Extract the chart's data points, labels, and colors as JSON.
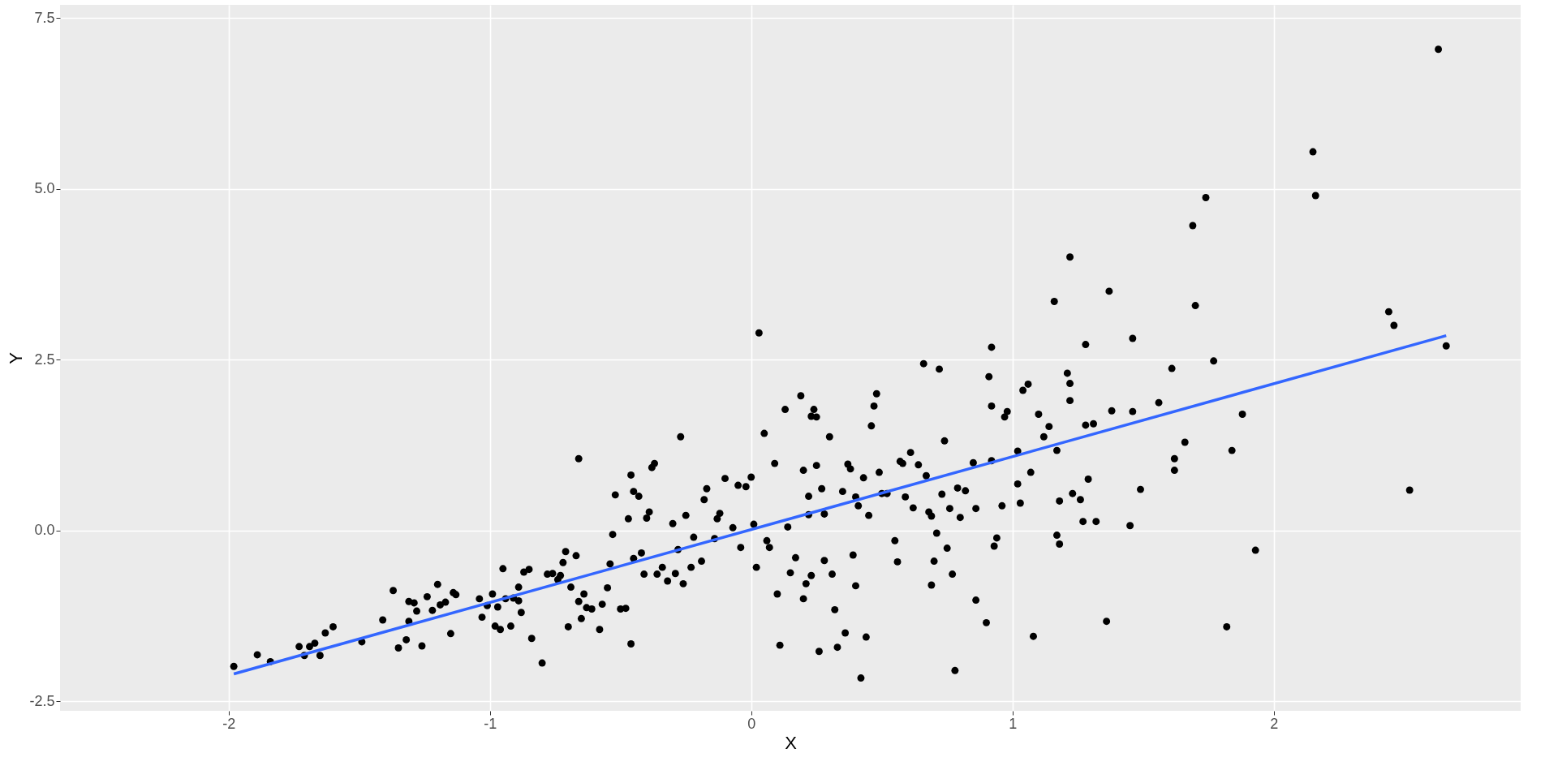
{
  "chart_data": {
    "type": "scatter",
    "xlabel": "X",
    "ylabel": "Y",
    "xlim": [
      -2.645,
      2.945
    ],
    "ylim": [
      -2.64,
      7.69
    ],
    "xticks": [
      -2,
      -1,
      0,
      1,
      2
    ],
    "yticks": [
      {
        "value": -2.5,
        "label": "-2.5"
      },
      {
        "value": 0,
        "label": "0.0"
      },
      2.5,
      {
        "value": 5,
        "label": "5.0"
      },
      7.5
    ],
    "grid": true,
    "series": [
      {
        "color": "#000000",
        "marker": "circle",
        "x": [
          -1.98,
          -1.89,
          -1.84,
          -1.73,
          -1.71,
          -1.69,
          -1.67,
          -1.65,
          -1.63,
          -1.6,
          -1.49,
          -1.41,
          -1.37,
          -1.35,
          -1.32,
          -1.31,
          -1.31,
          -1.29,
          -1.28,
          -1.26,
          -1.24,
          -1.22,
          -1.2,
          -1.19,
          -1.17,
          -1.15,
          -1.14,
          -1.13,
          -1.04,
          -1.03,
          -1.01,
          -0.99,
          -0.98,
          -0.97,
          -0.96,
          -0.95,
          -0.94,
          -0.92,
          -0.91,
          -0.89,
          -0.89,
          -0.88,
          -0.87,
          -0.85,
          -0.84,
          -0.8,
          -0.78,
          -0.76,
          -0.74,
          -0.73,
          -0.72,
          -0.71,
          -0.7,
          -0.69,
          -0.67,
          -0.66,
          -0.65,
          -0.66,
          -0.64,
          -0.63,
          -0.61,
          -0.58,
          -0.57,
          -0.55,
          -0.54,
          -0.53,
          -0.52,
          -0.5,
          -0.48,
          -0.47,
          -0.46,
          -0.45,
          -0.46,
          -0.45,
          -0.43,
          -0.42,
          -0.41,
          -0.4,
          -0.39,
          -0.38,
          -0.37,
          -0.36,
          -0.34,
          -0.32,
          -0.3,
          -0.29,
          -0.28,
          -0.27,
          -0.26,
          -0.25,
          -0.23,
          -0.22,
          -0.19,
          -0.18,
          -0.17,
          -0.14,
          -0.13,
          -0.12,
          -0.1,
          -0.07,
          -0.05,
          -0.04,
          -0.02,
          0,
          0.01,
          0.02,
          0.03,
          0.05,
          0.06,
          0.07,
          0.09,
          0.1,
          0.11,
          0.13,
          0.14,
          0.15,
          0.17,
          0.19,
          0.2,
          0.2,
          0.21,
          0.22,
          0.22,
          0.23,
          0.23,
          0.24,
          0.25,
          0.25,
          0.26,
          0.27,
          0.28,
          0.28,
          0.3,
          0.31,
          0.32,
          0.33,
          0.35,
          0.36,
          0.37,
          0.38,
          0.39,
          0.4,
          0.4,
          0.41,
          0.42,
          0.43,
          0.44,
          0.45,
          0.46,
          0.47,
          0.48,
          0.49,
          0.5,
          0.52,
          0.55,
          0.56,
          0.57,
          0.58,
          0.59,
          0.61,
          0.62,
          0.64,
          0.66,
          0.67,
          0.68,
          0.69,
          0.69,
          0.7,
          0.71,
          0.72,
          0.73,
          0.74,
          0.75,
          0.76,
          0.77,
          0.78,
          0.79,
          0.8,
          0.82,
          0.85,
          0.86,
          0.86,
          0.9,
          0.91,
          0.92,
          0.92,
          0.92,
          0.93,
          0.94,
          0.96,
          0.97,
          0.98,
          1.02,
          1.02,
          1.03,
          1.04,
          1.06,
          1.07,
          1.08,
          1.1,
          1.12,
          1.14,
          1.16,
          1.17,
          1.17,
          1.18,
          1.18,
          1.21,
          1.22,
          1.22,
          1.22,
          1.23,
          1.26,
          1.27,
          1.28,
          1.28,
          1.29,
          1.31,
          1.32,
          1.36,
          1.37,
          1.38,
          1.45,
          1.46,
          1.46,
          1.49,
          1.56,
          1.61,
          1.62,
          1.62,
          1.66,
          1.69,
          1.7,
          1.74,
          1.77,
          1.82,
          1.84,
          1.88,
          1.93,
          2.15,
          2.16,
          2.44,
          2.46,
          2.52,
          2.63,
          2.66
        ],
        "values": [
          -1.99,
          -1.82,
          -1.92,
          -1.7,
          -1.83,
          -1.7,
          -1.65,
          -1.83,
          -1.5,
          -1.41,
          -1.63,
          -1.31,
          -0.88,
          -1.72,
          -1.6,
          -1.04,
          -1.33,
          -1.06,
          -1.18,
          -1.69,
          -0.97,
          -1.17,
          -0.79,
          -1.09,
          -1.05,
          -1.51,
          -0.91,
          -0.94,
          -1,
          -1.27,
          -1.1,
          -0.93,
          -1.4,
          -1.12,
          -1.45,
          -0.56,
          -1,
          -1.4,
          -0.99,
          -0.83,
          -1.03,
          -1.2,
          -0.61,
          -0.57,
          -1.58,
          -1.94,
          -0.64,
          -0.63,
          -0.72,
          -0.66,
          -0.47,
          -0.31,
          -1.41,
          -0.83,
          -0.37,
          -1.04,
          -1.29,
          1.05,
          -0.93,
          -1.13,
          -1.15,
          -1.45,
          -1.08,
          -0.84,
          -0.49,
          -0.06,
          0.52,
          -1.15,
          -1.14,
          0.17,
          0.81,
          -0.41,
          -1.66,
          0.57,
          0.5,
          -0.33,
          -0.64,
          0.18,
          0.27,
          0.92,
          0.98,
          -0.64,
          -0.54,
          -0.74,
          0.1,
          -0.63,
          -0.28,
          1.37,
          -0.78,
          0.22,
          -0.54,
          -0.1,
          -0.45,
          0.45,
          0.61,
          -0.12,
          0.17,
          0.25,
          0.76,
          0.04,
          0.66,
          -0.25,
          0.64,
          0.78,
          0.09,
          -0.54,
          2.89,
          1.42,
          -0.15,
          -0.25,
          0.98,
          -0.93,
          -1.68,
          1.77,
          0.05,
          -0.62,
          -0.4,
          1.97,
          -1,
          0.88,
          -0.78,
          0.5,
          0.23,
          -0.66,
          1.67,
          1.77,
          0.95,
          1.66,
          -1.77,
          0.61,
          -0.44,
          0.24,
          1.37,
          -0.64,
          -1.16,
          -1.71,
          0.57,
          -1.5,
          0.97,
          0.9,
          -0.36,
          -0.81,
          0.49,
          0.36,
          -2.16,
          0.77,
          -1.56,
          0.22,
          1.53,
          1.82,
          2,
          0.85,
          0.54,
          0.54,
          -0.15,
          -0.46,
          1.01,
          0.98,
          0.49,
          1.14,
          0.33,
          0.96,
          2.44,
          0.8,
          0.27,
          0.21,
          -0.8,
          -0.45,
          -0.04,
          2.36,
          0.53,
          1.31,
          -0.26,
          0.32,
          -0.64,
          -2.05,
          0.62,
          0.19,
          0.58,
          0.99,
          -1.02,
          0.32,
          -1.35,
          2.25,
          1.02,
          2.68,
          1.82,
          -0.23,
          -0.11,
          0.36,
          1.66,
          1.74,
          0.68,
          1.16,
          0.4,
          2.05,
          2.14,
          0.85,
          -1.55,
          1.7,
          1.37,
          1.52,
          3.35,
          1.17,
          -0.07,
          0.43,
          -0.2,
          2.3,
          2.15,
          4,
          1.9,
          0.54,
          0.45,
          0.13,
          2.72,
          1.54,
          0.75,
          1.56,
          0.13,
          -1.33,
          3.5,
          1.75,
          0.07,
          2.81,
          1.74,
          0.6,
          1.87,
          2.37,
          0.88,
          1.05,
          1.29,
          4.46,
          3.29,
          4.87,
          2.48,
          -1.41,
          1.17,
          1.7,
          -0.29,
          5.54,
          4.9,
          3.2,
          3,
          0.59,
          7.04,
          2.7
        ]
      },
      {
        "type": "line",
        "color": "#3366ff",
        "x": [
          -1.98,
          2.66
        ],
        "values": [
          -2.1,
          2.85
        ]
      }
    ]
  }
}
